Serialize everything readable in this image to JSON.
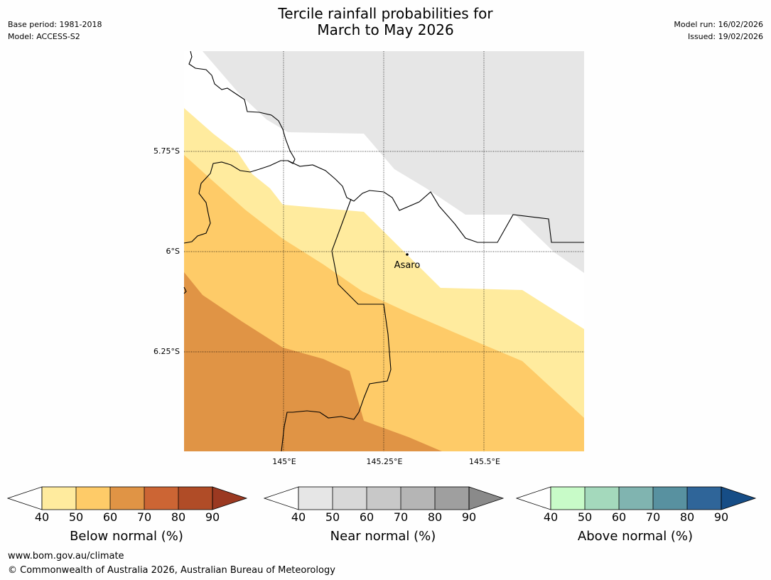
{
  "header": {
    "title_line1": "Tercile rainfall probabilities for",
    "title_line2": "March to May 2026",
    "base_period": "Base period: 1981-2018",
    "model": "Model: ACCESS-S2",
    "model_run": "Model run: 16/02/2026",
    "issued": "Issued: 19/02/2026"
  },
  "map": {
    "lat_labels": [
      "5.75°S",
      "6°S",
      "6.25°S"
    ],
    "lon_labels": [
      "145°E",
      "145.25°E",
      "145.5°E"
    ],
    "place_name": "Asaro",
    "colors": {
      "no_data": "#e6e6e6",
      "below_40_50": "#ffeb9e",
      "below_50_60": "#fecb68",
      "below_60_70": "#e09445",
      "background": "#ffffff"
    }
  },
  "legends": [
    {
      "label": "Below normal (%)",
      "ticks": [
        "40",
        "50",
        "60",
        "70",
        "80",
        "90"
      ],
      "colors": [
        "#ffeb9e",
        "#fecb68",
        "#e09445",
        "#cc6534",
        "#b04c27",
        "#9b3921"
      ]
    },
    {
      "label": "Near normal (%)",
      "ticks": [
        "40",
        "50",
        "60",
        "70",
        "80",
        "90"
      ],
      "colors": [
        "#e6e6e6",
        "#d8d8d8",
        "#c8c8c8",
        "#b5b5b5",
        "#9f9f9f",
        "#8a8a8a"
      ]
    },
    {
      "label": "Above normal (%)",
      "ticks": [
        "40",
        "50",
        "60",
        "70",
        "80",
        "90"
      ],
      "colors": [
        "#c8fbc8",
        "#a4d9bc",
        "#80b4b0",
        "#5891a0",
        "#2f6599",
        "#164d86"
      ]
    }
  ],
  "footer": {
    "url": "www.bom.gov.au/climate",
    "copyright": "© Commonwealth of Australia 2026, Australian Bureau of Meteorology"
  }
}
